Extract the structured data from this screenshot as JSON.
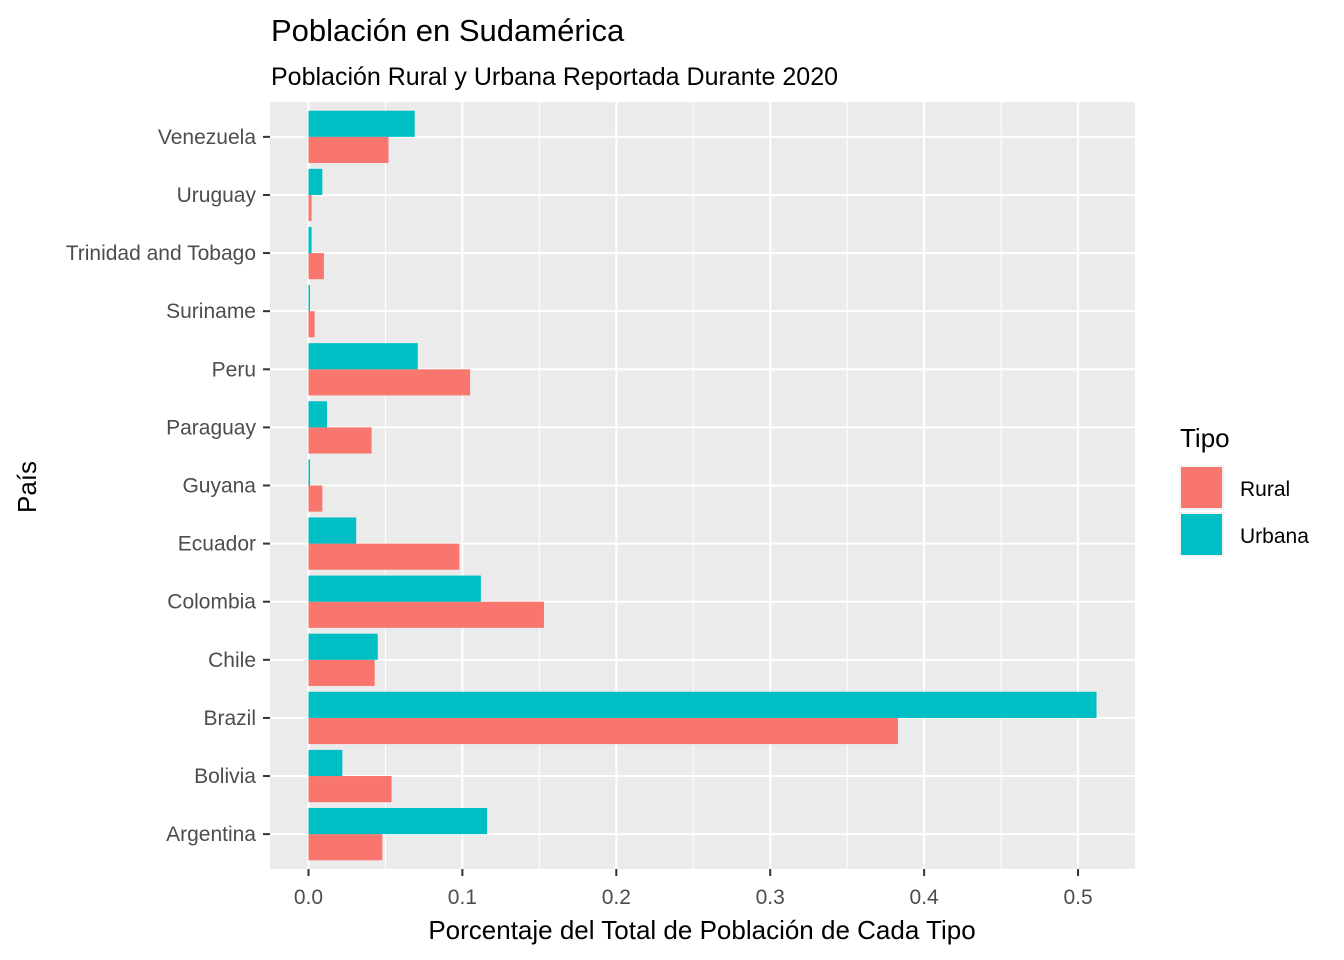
{
  "chart_data": {
    "type": "bar",
    "orientation": "horizontal",
    "title": "Población en Sudamérica",
    "subtitle": "Población Rural y Urbana Reportada Durante 2020",
    "xlabel": "Porcentaje del Total de Población de Cada Tipo",
    "ylabel": "País",
    "xlim": [
      -0.025,
      0.537
    ],
    "x_ticks": [
      "0.0",
      "0.1",
      "0.2",
      "0.3",
      "0.4",
      "0.5"
    ],
    "x_tick_values": [
      0.0,
      0.1,
      0.2,
      0.3,
      0.4,
      0.5
    ],
    "grid": true,
    "legend_title": "Tipo",
    "legend_position": "right",
    "categories": [
      "Argentina",
      "Bolivia",
      "Brazil",
      "Chile",
      "Colombia",
      "Ecuador",
      "Guyana",
      "Paraguay",
      "Peru",
      "Suriname",
      "Trinidad and Tobago",
      "Uruguay",
      "Venezuela"
    ],
    "series": [
      {
        "name": "Rural",
        "color": "#F8766D",
        "values": [
          0.048,
          0.054,
          0.383,
          0.043,
          0.153,
          0.098,
          0.009,
          0.041,
          0.105,
          0.004,
          0.01,
          0.002,
          0.052
        ]
      },
      {
        "name": "Urbana",
        "color": "#00BFC4",
        "values": [
          0.116,
          0.022,
          0.512,
          0.045,
          0.112,
          0.031,
          0.001,
          0.012,
          0.071,
          0.001,
          0.002,
          0.009,
          0.069
        ]
      }
    ]
  }
}
